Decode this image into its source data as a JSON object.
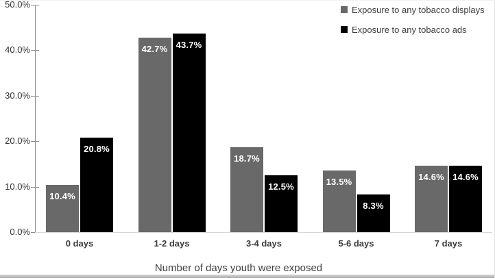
{
  "chart_data": {
    "type": "bar",
    "title": "",
    "xlabel": "Number of days youth were exposed",
    "ylabel": "",
    "categories": [
      "0 days",
      "1-2 days",
      "3-4 days",
      "5-6 days",
      "7 days"
    ],
    "series": [
      {
        "name": "Exposure to any tobacco displays",
        "color": "#696969",
        "values": [
          10.4,
          42.7,
          18.7,
          13.5,
          14.6
        ],
        "labels": [
          "10.4%",
          "42.7%",
          "18.7%",
          "13.5%",
          "14.6%"
        ]
      },
      {
        "name": "Exposure to any tobacco ads",
        "color": "#000000",
        "values": [
          20.8,
          43.7,
          12.5,
          8.3,
          14.6
        ],
        "labels": [
          "20.8%",
          "43.7%",
          "12.5%",
          "8.3%",
          "14.6%"
        ]
      }
    ],
    "ylim": [
      0,
      50
    ],
    "y_ticks": [
      "50.0%",
      "40.0%",
      "30.0%",
      "20.0%",
      "10.0%",
      "0.0%"
    ],
    "grid": false,
    "legend_position": "top-right",
    "bar_label_position": "inside-end",
    "bar_label_color": "#ffffff"
  }
}
